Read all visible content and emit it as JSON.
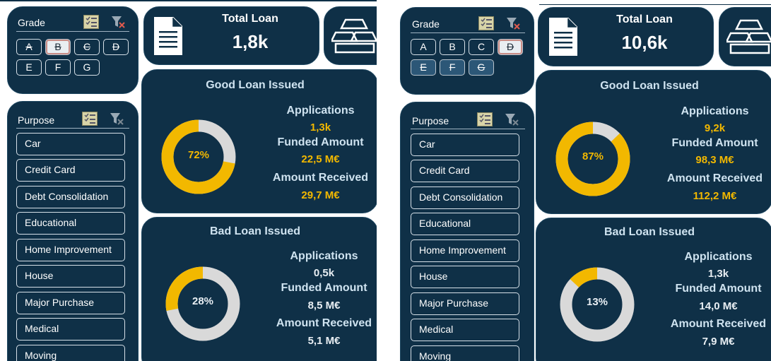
{
  "colors": {
    "panel": "#0f3047",
    "accent_good": "#f2b800",
    "donut_remainder": "#d9d9d9",
    "bad_value": "#e8eef3"
  },
  "icons": {
    "multiselect": "multi-select-icon",
    "clear": "clear-filter-icon",
    "document": "document-icon",
    "gold": "gold-bars-icon"
  },
  "left": {
    "grade_title": "Grade",
    "grades": [
      "A",
      "B",
      "C",
      "D",
      "E",
      "F",
      "G"
    ],
    "purpose_title": "Purpose",
    "purposes": [
      "Car",
      "Credit Card",
      "Debt Consolidation",
      "Educational",
      "Home Improvement",
      "House",
      "Major Purchase",
      "Medical",
      "Moving"
    ],
    "total_loan_label": "Total Loan",
    "total_loan_value": "1,8k",
    "good": {
      "title": "Good Loan Issued",
      "percent": 72,
      "percent_label": "72%",
      "applications_label": "Applications",
      "applications": "1,3k",
      "funded_label": "Funded Amount",
      "funded": "22,5 M€",
      "received_label": "Amount Received",
      "received": "29,7 M€"
    },
    "bad": {
      "title": "Bad Loan Issued",
      "percent": 28,
      "percent_label": "28%",
      "applications_label": "Applications",
      "applications": "0,5k",
      "funded_label": "Funded Amount",
      "funded": "8,5 M€",
      "received_label": "Amount Received",
      "received": "5,1 M€"
    }
  },
  "right": {
    "grade_title": "Grade",
    "grades": [
      "A",
      "B",
      "C",
      "D",
      "E",
      "F",
      "G"
    ],
    "purpose_title": "Purpose",
    "purposes": [
      "Car",
      "Credit Card",
      "Debt Consolidation",
      "Educational",
      "Home Improvement",
      "House",
      "Major Purchase",
      "Medical",
      "Moving"
    ],
    "total_loan_label": "Total Loan",
    "total_loan_value": "10,6k",
    "good": {
      "title": "Good Loan Issued",
      "percent": 87,
      "percent_label": "87%",
      "applications_label": "Applications",
      "applications": "9,2k",
      "funded_label": "Funded Amount",
      "funded": "98,3 M€",
      "received_label": "Amount Received",
      "received": "112,2 M€"
    },
    "bad": {
      "title": "Bad Loan Issued",
      "percent": 13,
      "percent_label": "13%",
      "applications_label": "Applications",
      "applications": "1,3k",
      "funded_label": "Funded Amount",
      "funded": "14,0 M€",
      "received_label": "Amount Received",
      "received": "7,9 M€"
    }
  }
}
